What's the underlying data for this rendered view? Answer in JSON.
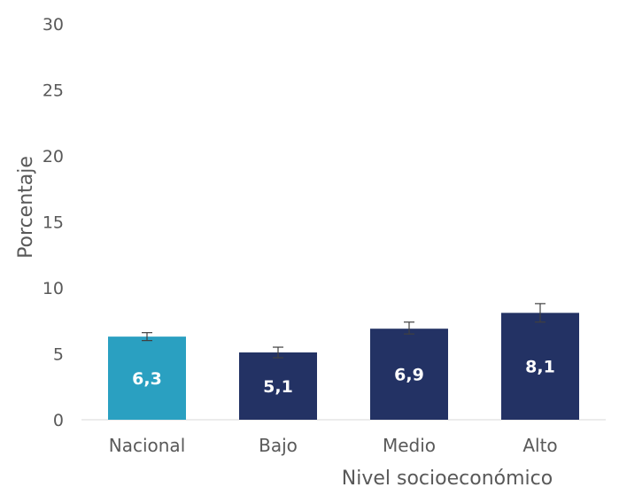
{
  "chart_data": {
    "type": "bar",
    "title": "",
    "xlabel": "Nivel socioeconómico",
    "ylabel": "Porcentaje",
    "ylim": [
      0,
      30
    ],
    "yticks": [
      "0",
      "5",
      "10",
      "15",
      "20",
      "25",
      "30"
    ],
    "categories": [
      "Nacional",
      "Bajo",
      "Medio",
      "Alto"
    ],
    "values": [
      6.3,
      5.1,
      6.9,
      8.1
    ],
    "value_labels": [
      "6,3",
      "5,1",
      "6,9",
      "8,1"
    ],
    "error_low": [
      6.0,
      4.7,
      6.5,
      7.4
    ],
    "error_high": [
      6.6,
      5.5,
      7.4,
      8.8
    ],
    "colors": [
      "#2aa0c1",
      "#233264",
      "#233264",
      "#233264"
    ],
    "grid": false,
    "legend": "none"
  }
}
